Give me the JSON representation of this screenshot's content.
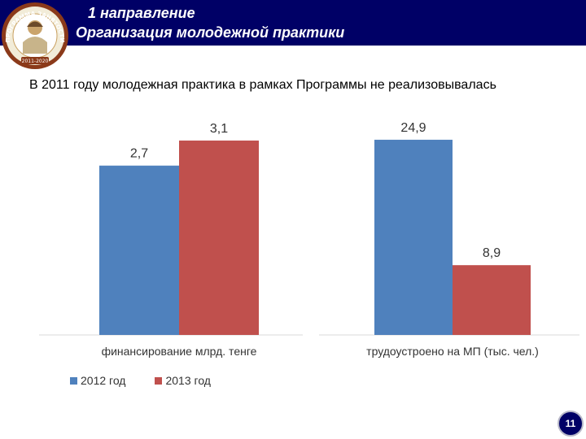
{
  "header": {
    "title_line1": "1 направление",
    "title_line2": "Организация молодежной практики",
    "logo": {
      "icon": "program-emblem-icon",
      "text_top": "ПРОГРАММА ЗАНЯТОСТИ",
      "years": "2011-2020"
    }
  },
  "subtitle": "В 2011 году молодежная практика в рамках Программы не реализовывалась",
  "colors": {
    "header": "#000066",
    "series_2012": "#4f81bd",
    "series_2013": "#c0504d"
  },
  "chart_data": [
    {
      "type": "bar",
      "categories": [
        "финансирование млрд. тенге"
      ],
      "series": [
        {
          "name": "2012 год",
          "values": [
            2.7
          ]
        },
        {
          "name": "2013 год",
          "values": [
            3.1
          ]
        }
      ],
      "data_labels": [
        "2,7",
        "3,1"
      ],
      "ylim": [
        0,
        3.5
      ],
      "grid": false
    },
    {
      "type": "bar",
      "categories": [
        "трудоустроено на МП  (тыс. чел.)"
      ],
      "series": [
        {
          "name": "2012 год",
          "values": [
            24.9
          ]
        },
        {
          "name": "2013 год",
          "values": [
            8.9
          ]
        }
      ],
      "data_labels": [
        "24,9",
        "8,9"
      ],
      "ylim": [
        0,
        28
      ],
      "grid": false
    }
  ],
  "legend": {
    "placement": "bottom-left",
    "items": [
      "2012 год",
      "2013 год"
    ]
  },
  "page_number": "11"
}
